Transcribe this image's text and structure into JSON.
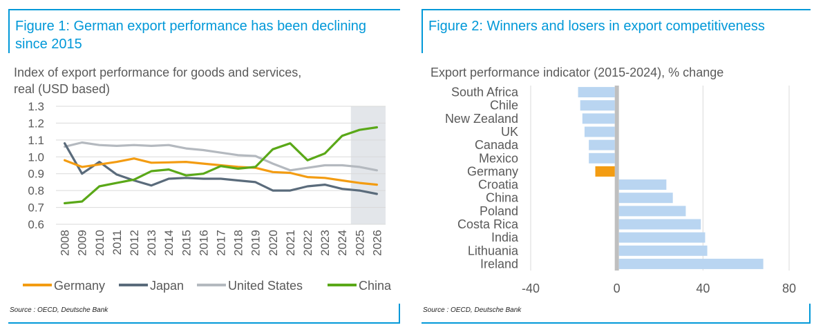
{
  "figure1": {
    "title": "Figure 1: German export performance has been declining since 2015",
    "subtitle_line1": "Index of export performance for goods and services,",
    "subtitle_line2": "real (USD based)",
    "source": "Source : OECD, Deutsche Bank"
  },
  "figure2": {
    "title": "Figure 2: Winners and losers in export competitiveness",
    "subtitle": "Export performance indicator (2015-2024), % change",
    "source": "Source : OECD, Deutsche Bank"
  },
  "colors": {
    "frame": "#0098d8",
    "germany": "#f39c12",
    "japan": "#5a6b7b",
    "united_states": "#b4b9bf",
    "china": "#5aa818",
    "bar_default": "#b9d5f1",
    "bar_highlight": "#f39c12",
    "shade": "#e3e6ea",
    "grid": "#d9d9d9"
  },
  "chart_data": [
    {
      "type": "line",
      "x": [
        2008,
        2009,
        2010,
        2011,
        2012,
        2013,
        2014,
        2015,
        2016,
        2017,
        2018,
        2019,
        2020,
        2021,
        2022,
        2023,
        2024,
        2025,
        2026
      ],
      "xticks": [
        "2008",
        "2009",
        "2010",
        "2011",
        "2012",
        "2013",
        "2014",
        "2015",
        "2016",
        "2017",
        "2018",
        "2019",
        "2020",
        "2021",
        "2022",
        "2023",
        "2024",
        "2025",
        "2026"
      ],
      "yticks": [
        "0.6",
        "0.7",
        "0.8",
        "0.9",
        "1.0",
        "1.1",
        "1.2",
        "1.3"
      ],
      "ylim": [
        0.6,
        1.3
      ],
      "shaded_forecast": [
        2025,
        2026
      ],
      "grid": "horizontal",
      "legend_position": "bottom",
      "series": [
        {
          "name": "Germany",
          "color": "#f39c12",
          "values": [
            0.98,
            0.94,
            0.955,
            0.97,
            0.99,
            0.965,
            0.967,
            0.97,
            0.96,
            0.95,
            0.94,
            0.935,
            0.91,
            0.905,
            0.88,
            0.875,
            0.86,
            0.845,
            0.835
          ]
        },
        {
          "name": "Japan",
          "color": "#5a6b7b",
          "values": [
            1.08,
            0.9,
            0.97,
            0.895,
            0.86,
            0.83,
            0.87,
            0.875,
            0.87,
            0.87,
            0.86,
            0.85,
            0.8,
            0.8,
            0.825,
            0.835,
            0.81,
            0.8,
            0.78
          ]
        },
        {
          "name": "United States",
          "color": "#b4b9bf",
          "values": [
            1.06,
            1.085,
            1.07,
            1.065,
            1.07,
            1.065,
            1.07,
            1.05,
            1.04,
            1.025,
            1.01,
            1.005,
            0.96,
            0.92,
            0.935,
            0.95,
            0.95,
            0.94,
            0.92
          ]
        },
        {
          "name": "China",
          "color": "#5aa818",
          "values": [
            0.725,
            0.735,
            0.825,
            0.845,
            0.865,
            0.915,
            0.925,
            0.89,
            0.9,
            0.945,
            0.93,
            0.94,
            1.045,
            1.08,
            0.98,
            1.02,
            1.125,
            1.16,
            1.175
          ]
        }
      ]
    },
    {
      "type": "bar",
      "orientation": "horizontal",
      "categories": [
        "South Africa",
        "Chile",
        "New Zealand",
        "UK",
        "Canada",
        "Mexico",
        "Germany",
        "Croatia",
        "China",
        "Poland",
        "Costa Rica",
        "India",
        "Lithuania",
        "Ireland"
      ],
      "values": [
        -18,
        -17,
        -16,
        -15,
        -13,
        -13,
        -10,
        23,
        26,
        32,
        39,
        41,
        42,
        68
      ],
      "highlight": "Germany",
      "xlim": [
        -40,
        80
      ],
      "xticks": [
        "-40",
        "0",
        "40",
        "80"
      ],
      "grid": "vertical"
    }
  ]
}
